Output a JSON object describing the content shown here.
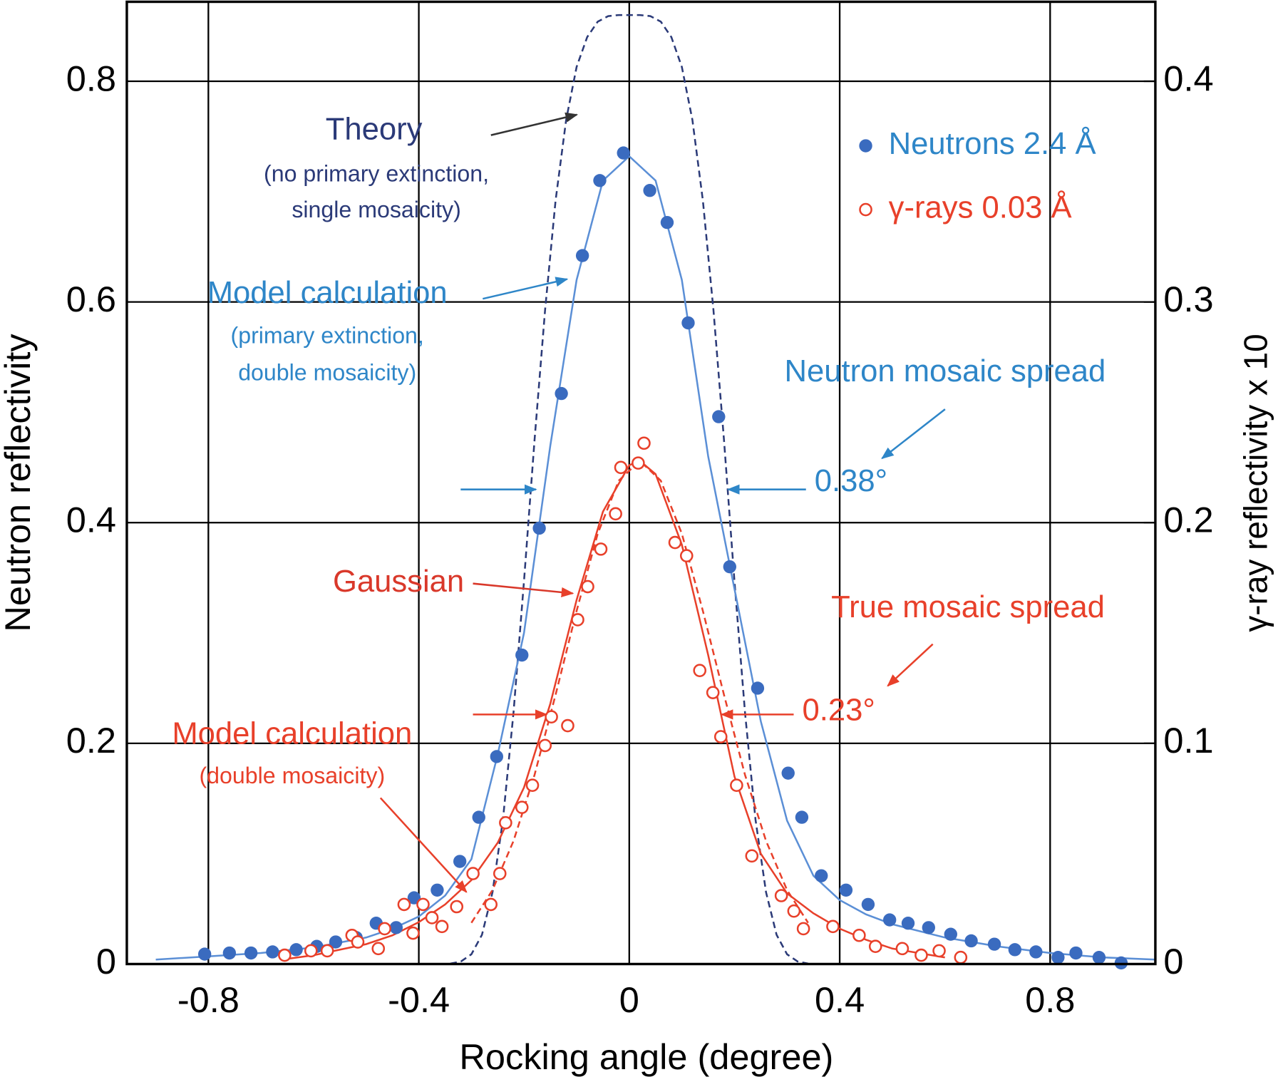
{
  "chart_data": {
    "type": "scatter",
    "x_label": "Rocking angle (degree)",
    "y_label": "Neutron reflectivity",
    "y2_label": "γ-ray reflectivity x 10",
    "xlim": [
      -0.955,
      1.0
    ],
    "ylim": [
      0,
      0.872
    ],
    "y2lim": [
      0,
      0.436
    ],
    "xticks": [
      -0.8,
      -0.4,
      0,
      0.4,
      0.8
    ],
    "yticks": [
      0,
      0.2,
      0.4,
      0.6,
      0.8
    ],
    "y2ticks": [
      0,
      0.1,
      0.2,
      0.3,
      0.4
    ],
    "grid": true,
    "legend": "upper right",
    "series": [
      {
        "name": "Neutrons 2.4 Å",
        "color": "#3a6bbf",
        "marker": "filled",
        "x": [
          -0.807,
          -0.76,
          -0.719,
          -0.678,
          -0.633,
          -0.594,
          -0.558,
          -0.519,
          -0.481,
          -0.443,
          -0.409,
          -0.365,
          -0.322,
          -0.286,
          -0.252,
          -0.204,
          -0.171,
          -0.129,
          -0.089,
          -0.056,
          -0.011,
          0.039,
          0.072,
          0.112,
          0.17,
          0.191,
          0.244,
          0.302,
          0.328,
          0.365,
          0.412,
          0.454,
          0.495,
          0.53,
          0.569,
          0.611,
          0.65,
          0.694,
          0.733,
          0.773,
          0.815,
          0.849,
          0.893,
          0.935
        ],
        "values": [
          0.009,
          0.01,
          0.01,
          0.011,
          0.013,
          0.016,
          0.02,
          0.024,
          0.037,
          0.033,
          0.06,
          0.067,
          0.093,
          0.133,
          0.188,
          0.28,
          0.395,
          0.517,
          0.642,
          0.71,
          0.735,
          0.701,
          0.672,
          0.581,
          0.496,
          0.36,
          0.25,
          0.173,
          0.133,
          0.08,
          0.067,
          0.054,
          0.04,
          0.037,
          0.033,
          0.027,
          0.021,
          0.018,
          0.013,
          0.011,
          0.006,
          0.01,
          0.006,
          0.001
        ]
      },
      {
        "name": "γ-rays 0.03 Å",
        "color": "#e8402a",
        "marker": "open",
        "axis": "y2",
        "x": [
          -0.655,
          -0.605,
          -0.574,
          -0.527,
          -0.516,
          -0.477,
          -0.465,
          -0.428,
          -0.411,
          -0.392,
          -0.375,
          -0.356,
          -0.328,
          -0.297,
          -0.263,
          -0.246,
          -0.235,
          -0.204,
          -0.184,
          -0.16,
          -0.148,
          -0.117,
          -0.098,
          -0.079,
          -0.054,
          -0.026,
          -0.016,
          0.017,
          0.028,
          0.087,
          0.109,
          0.134,
          0.159,
          0.174,
          0.204,
          0.233,
          0.289,
          0.313,
          0.331,
          0.387,
          0.437,
          0.468,
          0.519,
          0.555,
          0.589,
          0.63
        ],
        "values": [
          0.004,
          0.006,
          0.006,
          0.013,
          0.01,
          0.007,
          0.016,
          0.027,
          0.014,
          0.027,
          0.021,
          0.017,
          0.026,
          0.041,
          0.027,
          0.041,
          0.064,
          0.071,
          0.081,
          0.099,
          0.112,
          0.108,
          0.156,
          0.171,
          0.188,
          0.204,
          0.225,
          0.227,
          0.236,
          0.191,
          0.185,
          0.133,
          0.123,
          0.103,
          0.081,
          0.049,
          0.031,
          0.024,
          0.016,
          0.017,
          0.013,
          0.008,
          0.007,
          0.004,
          0.006,
          0.003
        ]
      }
    ],
    "curves": [
      {
        "color": "#2b3a78",
        "dashed": true,
        "x": [
          -0.34,
          -0.32,
          -0.3,
          -0.28,
          -0.26,
          -0.24,
          -0.22,
          -0.2,
          -0.18,
          -0.16,
          -0.14,
          -0.12,
          -0.1,
          -0.08,
          -0.06,
          -0.04,
          -0.02,
          0,
          0.02,
          0.04,
          0.06,
          0.08,
          0.1,
          0.12,
          0.14,
          0.16,
          0.18,
          0.2,
          0.22,
          0.24,
          0.26,
          0.28,
          0.3,
          0.32,
          0.34
        ],
        "values": [
          0.0004,
          0.0023,
          0.0088,
          0.0265,
          0.065,
          0.131,
          0.228,
          0.347,
          0.475,
          0.593,
          0.692,
          0.765,
          0.813,
          0.84,
          0.854,
          0.859,
          0.86,
          0.86,
          0.86,
          0.859,
          0.854,
          0.84,
          0.813,
          0.765,
          0.692,
          0.593,
          0.475,
          0.347,
          0.228,
          0.131,
          0.065,
          0.0265,
          0.0088,
          0.0023,
          0.0004
        ]
      },
      {
        "color": "#5b8fd6",
        "dashed": false,
        "x": [
          -0.9,
          -0.8,
          -0.7,
          -0.6,
          -0.5,
          -0.45,
          -0.4,
          -0.35,
          -0.3,
          -0.25,
          -0.2,
          -0.15,
          -0.1,
          -0.05,
          0,
          0.05,
          0.1,
          0.15,
          0.2,
          0.25,
          0.3,
          0.35,
          0.4,
          0.45,
          0.5,
          0.6,
          0.7,
          0.8,
          0.9,
          1.0
        ],
        "values": [
          0.004,
          0.007,
          0.01,
          0.015,
          0.024,
          0.032,
          0.043,
          0.062,
          0.095,
          0.19,
          0.3,
          0.47,
          0.62,
          0.71,
          0.732,
          0.71,
          0.62,
          0.46,
          0.34,
          0.22,
          0.13,
          0.08,
          0.058,
          0.045,
          0.036,
          0.024,
          0.016,
          0.01,
          0.006,
          0.004
        ]
      },
      {
        "color": "#e8402a",
        "dashed": true,
        "axis": "y2",
        "x": [
          -0.3,
          -0.26,
          -0.22,
          -0.18,
          -0.14,
          -0.1,
          -0.06,
          -0.02,
          0.02,
          0.06,
          0.1,
          0.14,
          0.18,
          0.22,
          0.26,
          0.3,
          0.34
        ],
        "values": [
          0.0187,
          0.0335,
          0.0558,
          0.0857,
          0.122,
          0.16,
          0.195,
          0.219,
          0.228,
          0.219,
          0.195,
          0.16,
          0.122,
          0.0857,
          0.0558,
          0.0335,
          0.0187
        ]
      },
      {
        "color": "#e8402a",
        "dashed": false,
        "axis": "y2",
        "x": [
          -0.66,
          -0.6,
          -0.5,
          -0.45,
          -0.4,
          -0.35,
          -0.3,
          -0.25,
          -0.2,
          -0.15,
          -0.1,
          -0.05,
          0,
          0.02,
          0.05,
          0.1,
          0.15,
          0.2,
          0.25,
          0.3,
          0.35,
          0.4,
          0.45,
          0.5,
          0.6
        ],
        "values": [
          0.002,
          0.004,
          0.009,
          0.013,
          0.019,
          0.027,
          0.038,
          0.055,
          0.08,
          0.118,
          0.165,
          0.205,
          0.226,
          0.228,
          0.222,
          0.19,
          0.14,
          0.085,
          0.05,
          0.032,
          0.023,
          0.016,
          0.011,
          0.007,
          0.003
        ]
      }
    ],
    "annotations": [
      "Theory",
      "(no primary extinction,",
      "single mosaicity)",
      "Model calculation",
      "(primary extinction,",
      "double mosaicity)",
      "Neutron mosaic spread",
      "0.38°",
      "Gaussian",
      "True mosaic spread",
      "0.23°",
      "Model calculation",
      "(double mosaicity)"
    ]
  }
}
